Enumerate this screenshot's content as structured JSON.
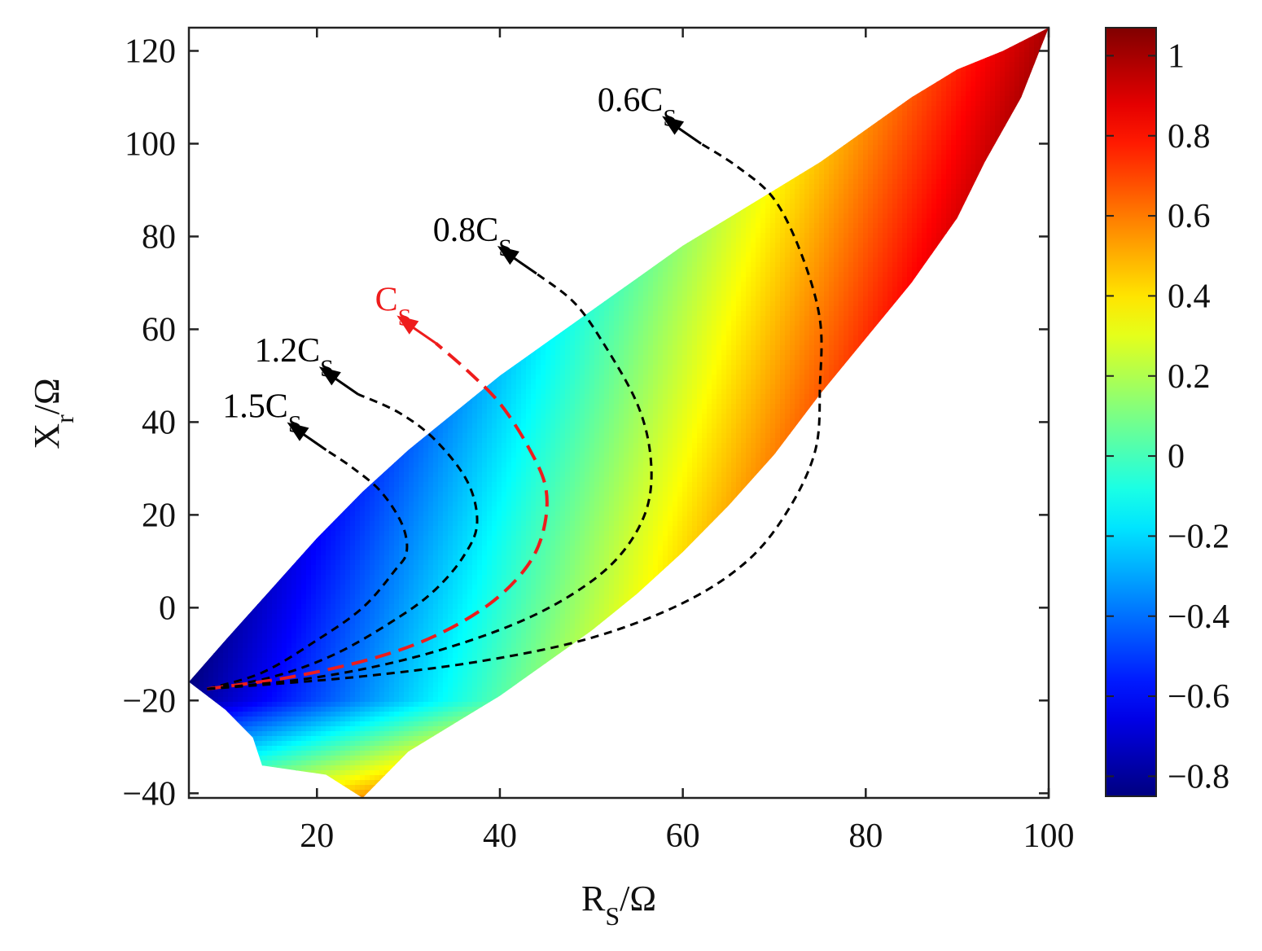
{
  "chart_data": {
    "type": "heatmap",
    "xlabel_main": "R",
    "xlabel_sub": "S",
    "xlabel_unit": "/Ω",
    "ylabel_main": "X",
    "ylabel_sub": "r",
    "ylabel_unit": "/Ω",
    "xlim": [
      6,
      100
    ],
    "ylim": [
      -41,
      125
    ],
    "xticks": [
      20,
      40,
      60,
      80,
      100
    ],
    "xtick_labels": [
      "20",
      "40",
      "60",
      "80",
      "100"
    ],
    "yticks": [
      -40,
      -20,
      0,
      20,
      40,
      60,
      80,
      100,
      120
    ],
    "ytick_labels": [
      "−40",
      "−20",
      "0",
      "20",
      "40",
      "60",
      "80",
      "100",
      "120"
    ],
    "colorbar": {
      "range": [
        -0.85,
        1.07
      ],
      "ticks": [
        -0.8,
        -0.6,
        -0.4,
        -0.2,
        0,
        0.2,
        0.4,
        0.6,
        0.8,
        1
      ],
      "tick_labels": [
        "−0.8",
        "−0.6",
        "−0.4",
        "−0.2",
        "0",
        "0.2",
        "0.4",
        "0.6",
        "0.8",
        "1"
      ],
      "colormap": "jet"
    },
    "region": {
      "upper_boundary": [
        [
          6,
          -16
        ],
        [
          10,
          -7
        ],
        [
          15,
          4
        ],
        [
          20,
          15
        ],
        [
          25,
          25
        ],
        [
          30,
          34
        ],
        [
          35,
          42
        ],
        [
          40,
          50
        ],
        [
          45,
          57
        ],
        [
          50,
          64
        ],
        [
          55,
          71
        ],
        [
          60,
          78
        ],
        [
          65,
          84
        ],
        [
          70,
          90
        ],
        [
          75,
          96
        ],
        [
          80,
          103
        ],
        [
          85,
          110
        ],
        [
          90,
          116
        ],
        [
          95,
          120
        ],
        [
          100,
          125
        ]
      ],
      "lower_boundary": [
        [
          100,
          125
        ],
        [
          97,
          110
        ],
        [
          93,
          96
        ],
        [
          90,
          84
        ],
        [
          85,
          70
        ],
        [
          80,
          58
        ],
        [
          75,
          46
        ],
        [
          70,
          33
        ],
        [
          65,
          22
        ],
        [
          60,
          12
        ],
        [
          55,
          3
        ],
        [
          50,
          -5
        ],
        [
          45,
          -12
        ],
        [
          40,
          -19
        ],
        [
          35,
          -25
        ],
        [
          30,
          -31
        ],
        [
          25,
          -41
        ],
        [
          21,
          -36
        ],
        [
          14,
          -34
        ],
        [
          13,
          -28
        ],
        [
          10,
          -22
        ],
        [
          6,
          -16
        ]
      ]
    },
    "series": [
      {
        "name": "1.5C",
        "name_sub": "S",
        "color": "#000000",
        "style": "dashed",
        "points": [
          [
            8,
            -17.5
          ],
          [
            14,
            -14
          ],
          [
            20,
            -7
          ],
          [
            25,
            0
          ],
          [
            28.5,
            8
          ],
          [
            29.8,
            12
          ],
          [
            29.3,
            18
          ],
          [
            27,
            25
          ],
          [
            24,
            30
          ],
          [
            21,
            34
          ]
        ]
      },
      {
        "name": "1.2C",
        "name_sub": "S",
        "color": "#000000",
        "style": "dashed",
        "points": [
          [
            8,
            -17.5
          ],
          [
            15,
            -15
          ],
          [
            22,
            -10
          ],
          [
            29,
            -2
          ],
          [
            33,
            4
          ],
          [
            36,
            11
          ],
          [
            37.5,
            18
          ],
          [
            36.5,
            27
          ],
          [
            33,
            36
          ],
          [
            29,
            42
          ],
          [
            24.5,
            46
          ]
        ]
      },
      {
        "name": "C",
        "name_sub": "S",
        "color": "#ee1c1c",
        "style": "dashed",
        "points": [
          [
            8,
            -17.5
          ],
          [
            17,
            -15
          ],
          [
            26,
            -11
          ],
          [
            33,
            -6
          ],
          [
            39,
            1
          ],
          [
            43,
            9
          ],
          [
            44.8,
            17
          ],
          [
            45,
            26
          ],
          [
            43,
            35
          ],
          [
            40,
            44
          ],
          [
            36.5,
            51
          ],
          [
            33,
            57
          ]
        ]
      },
      {
        "name": "0.8C",
        "name_sub": "S",
        "color": "#000000",
        "style": "dashed",
        "points": [
          [
            8,
            -17.5
          ],
          [
            20,
            -15
          ],
          [
            31,
            -10.5
          ],
          [
            41,
            -4
          ],
          [
            48,
            3
          ],
          [
            53,
            11
          ],
          [
            56,
            21
          ],
          [
            56.5,
            32
          ],
          [
            55,
            44
          ],
          [
            51,
            58
          ],
          [
            48,
            66
          ],
          [
            44,
            72
          ]
        ]
      },
      {
        "name": "0.6C",
        "name_sub": "S",
        "color": "#000000",
        "style": "dashed",
        "points": [
          [
            8,
            -17.5
          ],
          [
            24,
            -15
          ],
          [
            38,
            -11.5
          ],
          [
            50,
            -6.5
          ],
          [
            60,
            1
          ],
          [
            67,
            10
          ],
          [
            71.5,
            21
          ],
          [
            74.5,
            34
          ],
          [
            75,
            48
          ],
          [
            75,
            62
          ],
          [
            73,
            76
          ],
          [
            70,
            88
          ],
          [
            66,
            95
          ],
          [
            62,
            100
          ]
        ]
      }
    ],
    "annotation_positions": "arrow tips near the upper boundary of the colored region"
  }
}
